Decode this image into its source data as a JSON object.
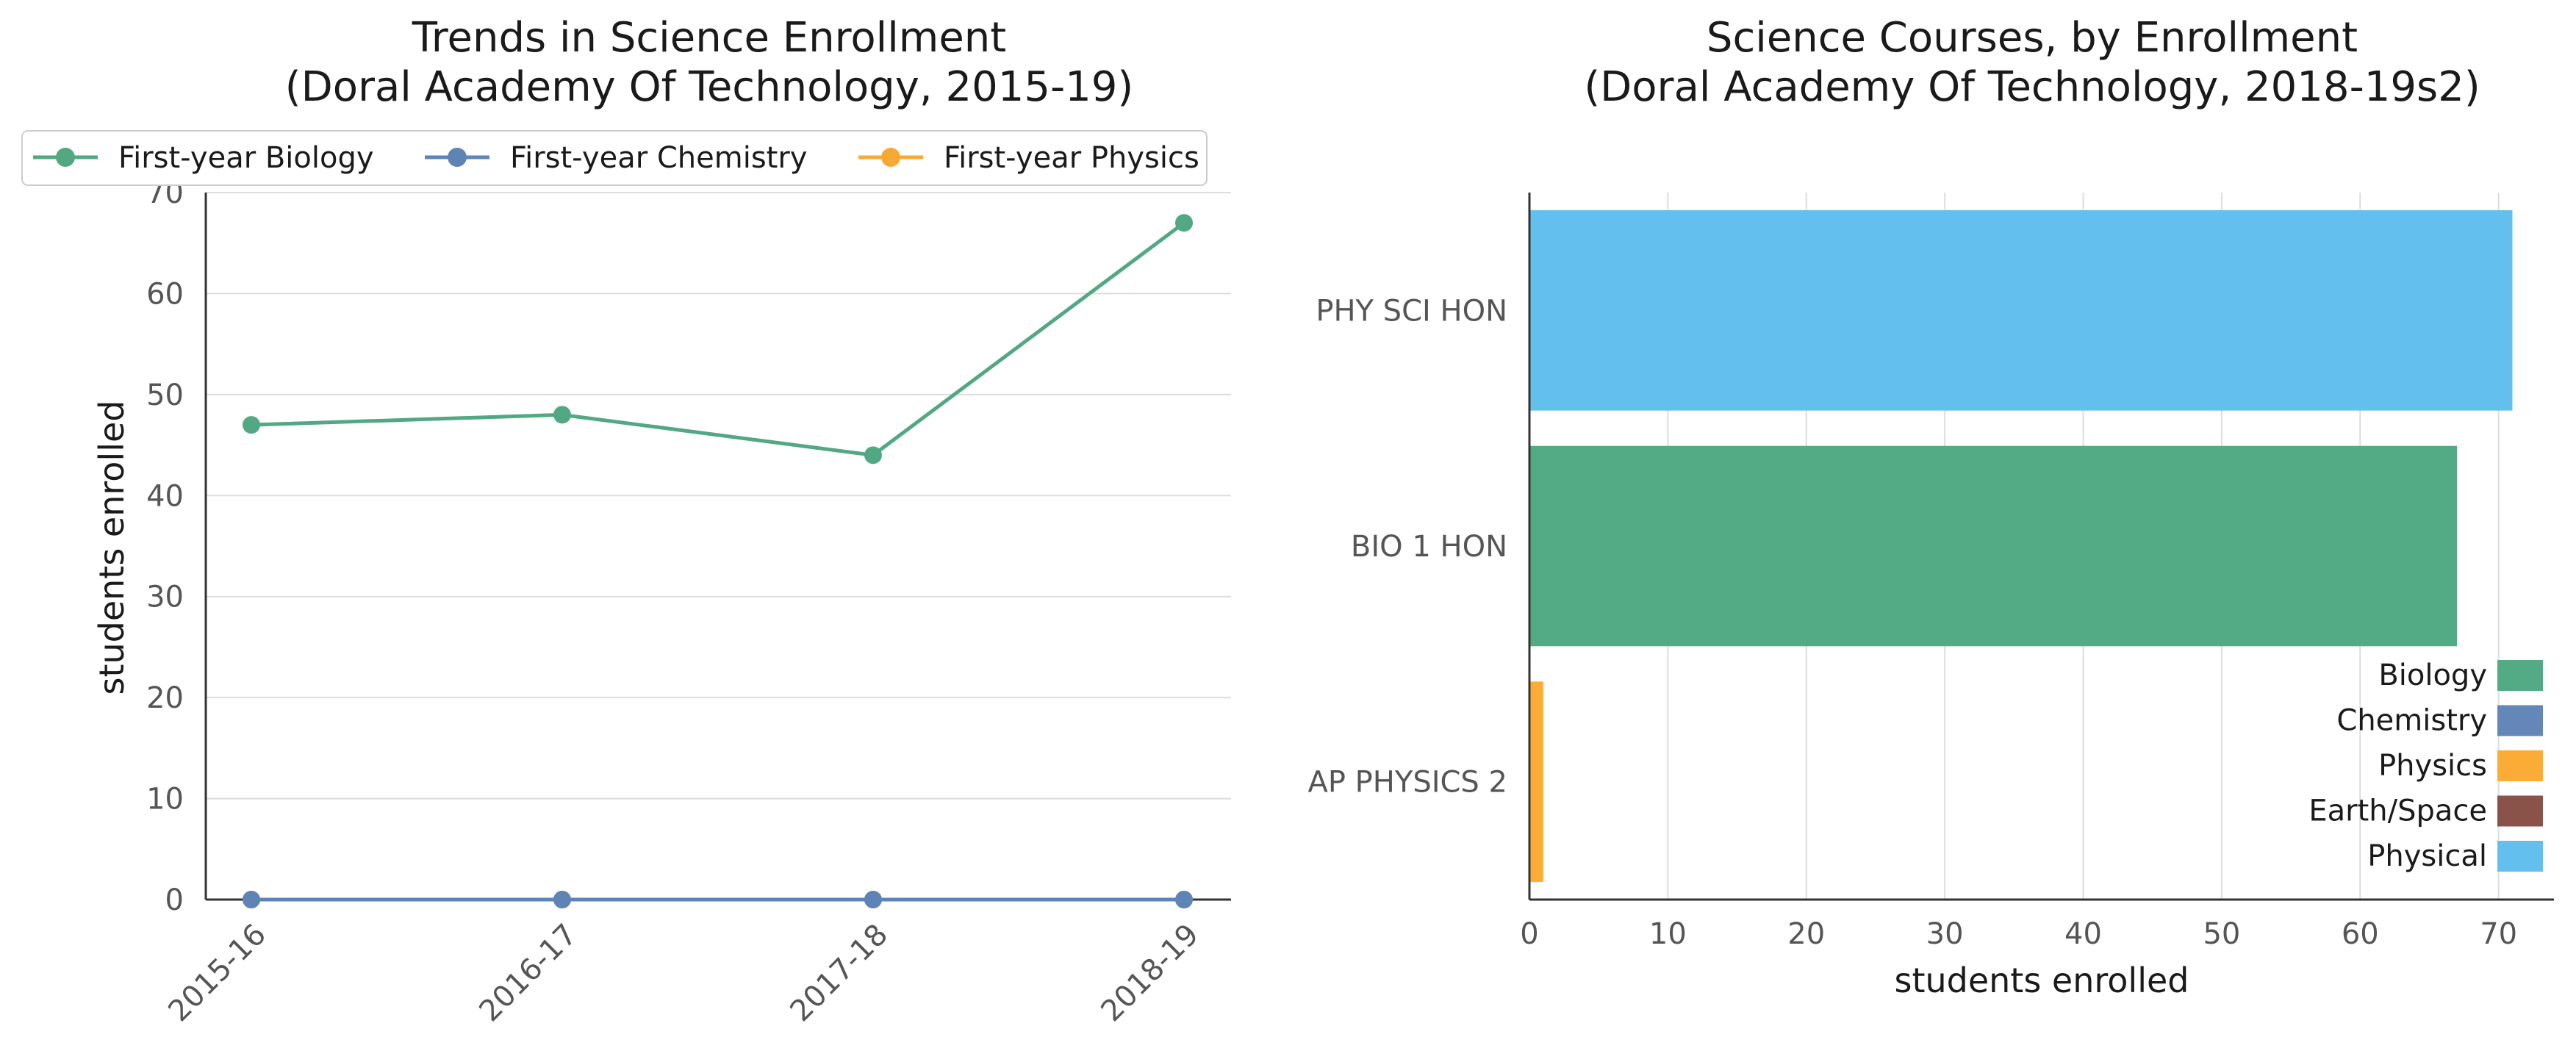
{
  "chart_data": [
    {
      "type": "line",
      "title": "Trends in Science Enrollment",
      "subtitle": "(Doral Academy Of Technology, 2015-19)",
      "xlabel": "",
      "ylabel": "students enrolled",
      "categories": [
        "2015-16",
        "2016-17",
        "2017-18",
        "2018-19"
      ],
      "ylim": [
        0,
        70
      ],
      "yticks": [
        0,
        10,
        20,
        30,
        40,
        50,
        60,
        70
      ],
      "grid": "horizontal",
      "legend_position": "top",
      "series": [
        {
          "name": "First-year Biology",
          "values": [
            47,
            48,
            44,
            67
          ],
          "color": "#52a883"
        },
        {
          "name": "First-year Chemistry",
          "values": [
            0,
            0,
            0,
            0
          ],
          "color": "#5d84b5"
        },
        {
          "name": "First-year Physics",
          "values": [
            0,
            0,
            0,
            0
          ],
          "color": "#f8a933"
        }
      ]
    },
    {
      "type": "bar",
      "orientation": "horizontal",
      "title": "Science Courses, by Enrollment",
      "subtitle": "(Doral Academy Of Technology, 2018-19s2)",
      "xlabel": "students enrolled",
      "ylabel": "",
      "categories": [
        "PHY SCI HON",
        "BIO 1 HON",
        "AP PHYSICS 2"
      ],
      "values": [
        71,
        67,
        1
      ],
      "bar_subjects": [
        "Physical",
        "Biology",
        "Physics"
      ],
      "xlim": [
        0,
        74
      ],
      "xticks": [
        0,
        10,
        20,
        30,
        40,
        50,
        60,
        70
      ],
      "grid": "vertical",
      "legend_position": "lower-right",
      "legend": [
        {
          "name": "Biology",
          "color": "#52ab84"
        },
        {
          "name": "Chemistry",
          "color": "#6587b8"
        },
        {
          "name": "Physics",
          "color": "#fbac36"
        },
        {
          "name": "Earth/Space",
          "color": "#8a5349"
        },
        {
          "name": "Physical",
          "color": "#63bfee"
        }
      ]
    }
  ]
}
